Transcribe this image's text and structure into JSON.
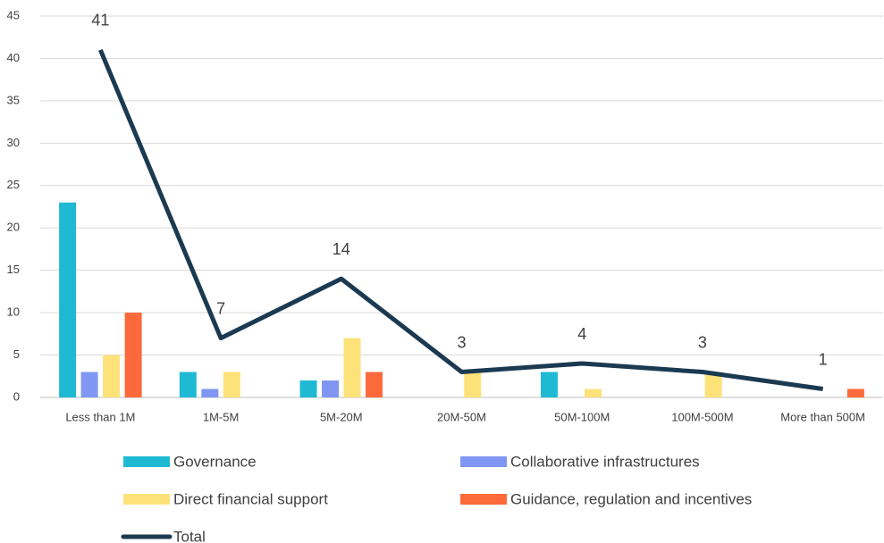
{
  "chart_data": {
    "type": "bar",
    "categories": [
      "Less than 1M",
      "1M-5M",
      "5M-20M",
      "20M-50M",
      "50M-100M",
      "100M-500M",
      "More than 500M"
    ],
    "series": [
      {
        "name": "Governance",
        "color": "#1fb9d4",
        "values": [
          23,
          3,
          2,
          0,
          3,
          0,
          0
        ]
      },
      {
        "name": "Collaborative infrastructures",
        "color": "#7f97f3",
        "values": [
          3,
          1,
          2,
          0,
          0,
          0,
          0
        ]
      },
      {
        "name": "Direct financial support",
        "color": "#fde27a",
        "values": [
          5,
          3,
          7,
          3,
          1,
          3,
          0
        ]
      },
      {
        "name": "Guidance, regulation and incentives",
        "color": "#fc6a3c",
        "values": [
          10,
          0,
          3,
          0,
          0,
          0,
          1
        ]
      },
      {
        "name": "Total",
        "type": "line",
        "color": "#1b3a52",
        "values": [
          41,
          7,
          14,
          3,
          4,
          3,
          1
        ]
      }
    ],
    "ylim": [
      0,
      45
    ],
    "yticks": [
      0,
      5,
      10,
      15,
      20,
      25,
      30,
      35,
      40,
      45
    ],
    "grid": true
  }
}
